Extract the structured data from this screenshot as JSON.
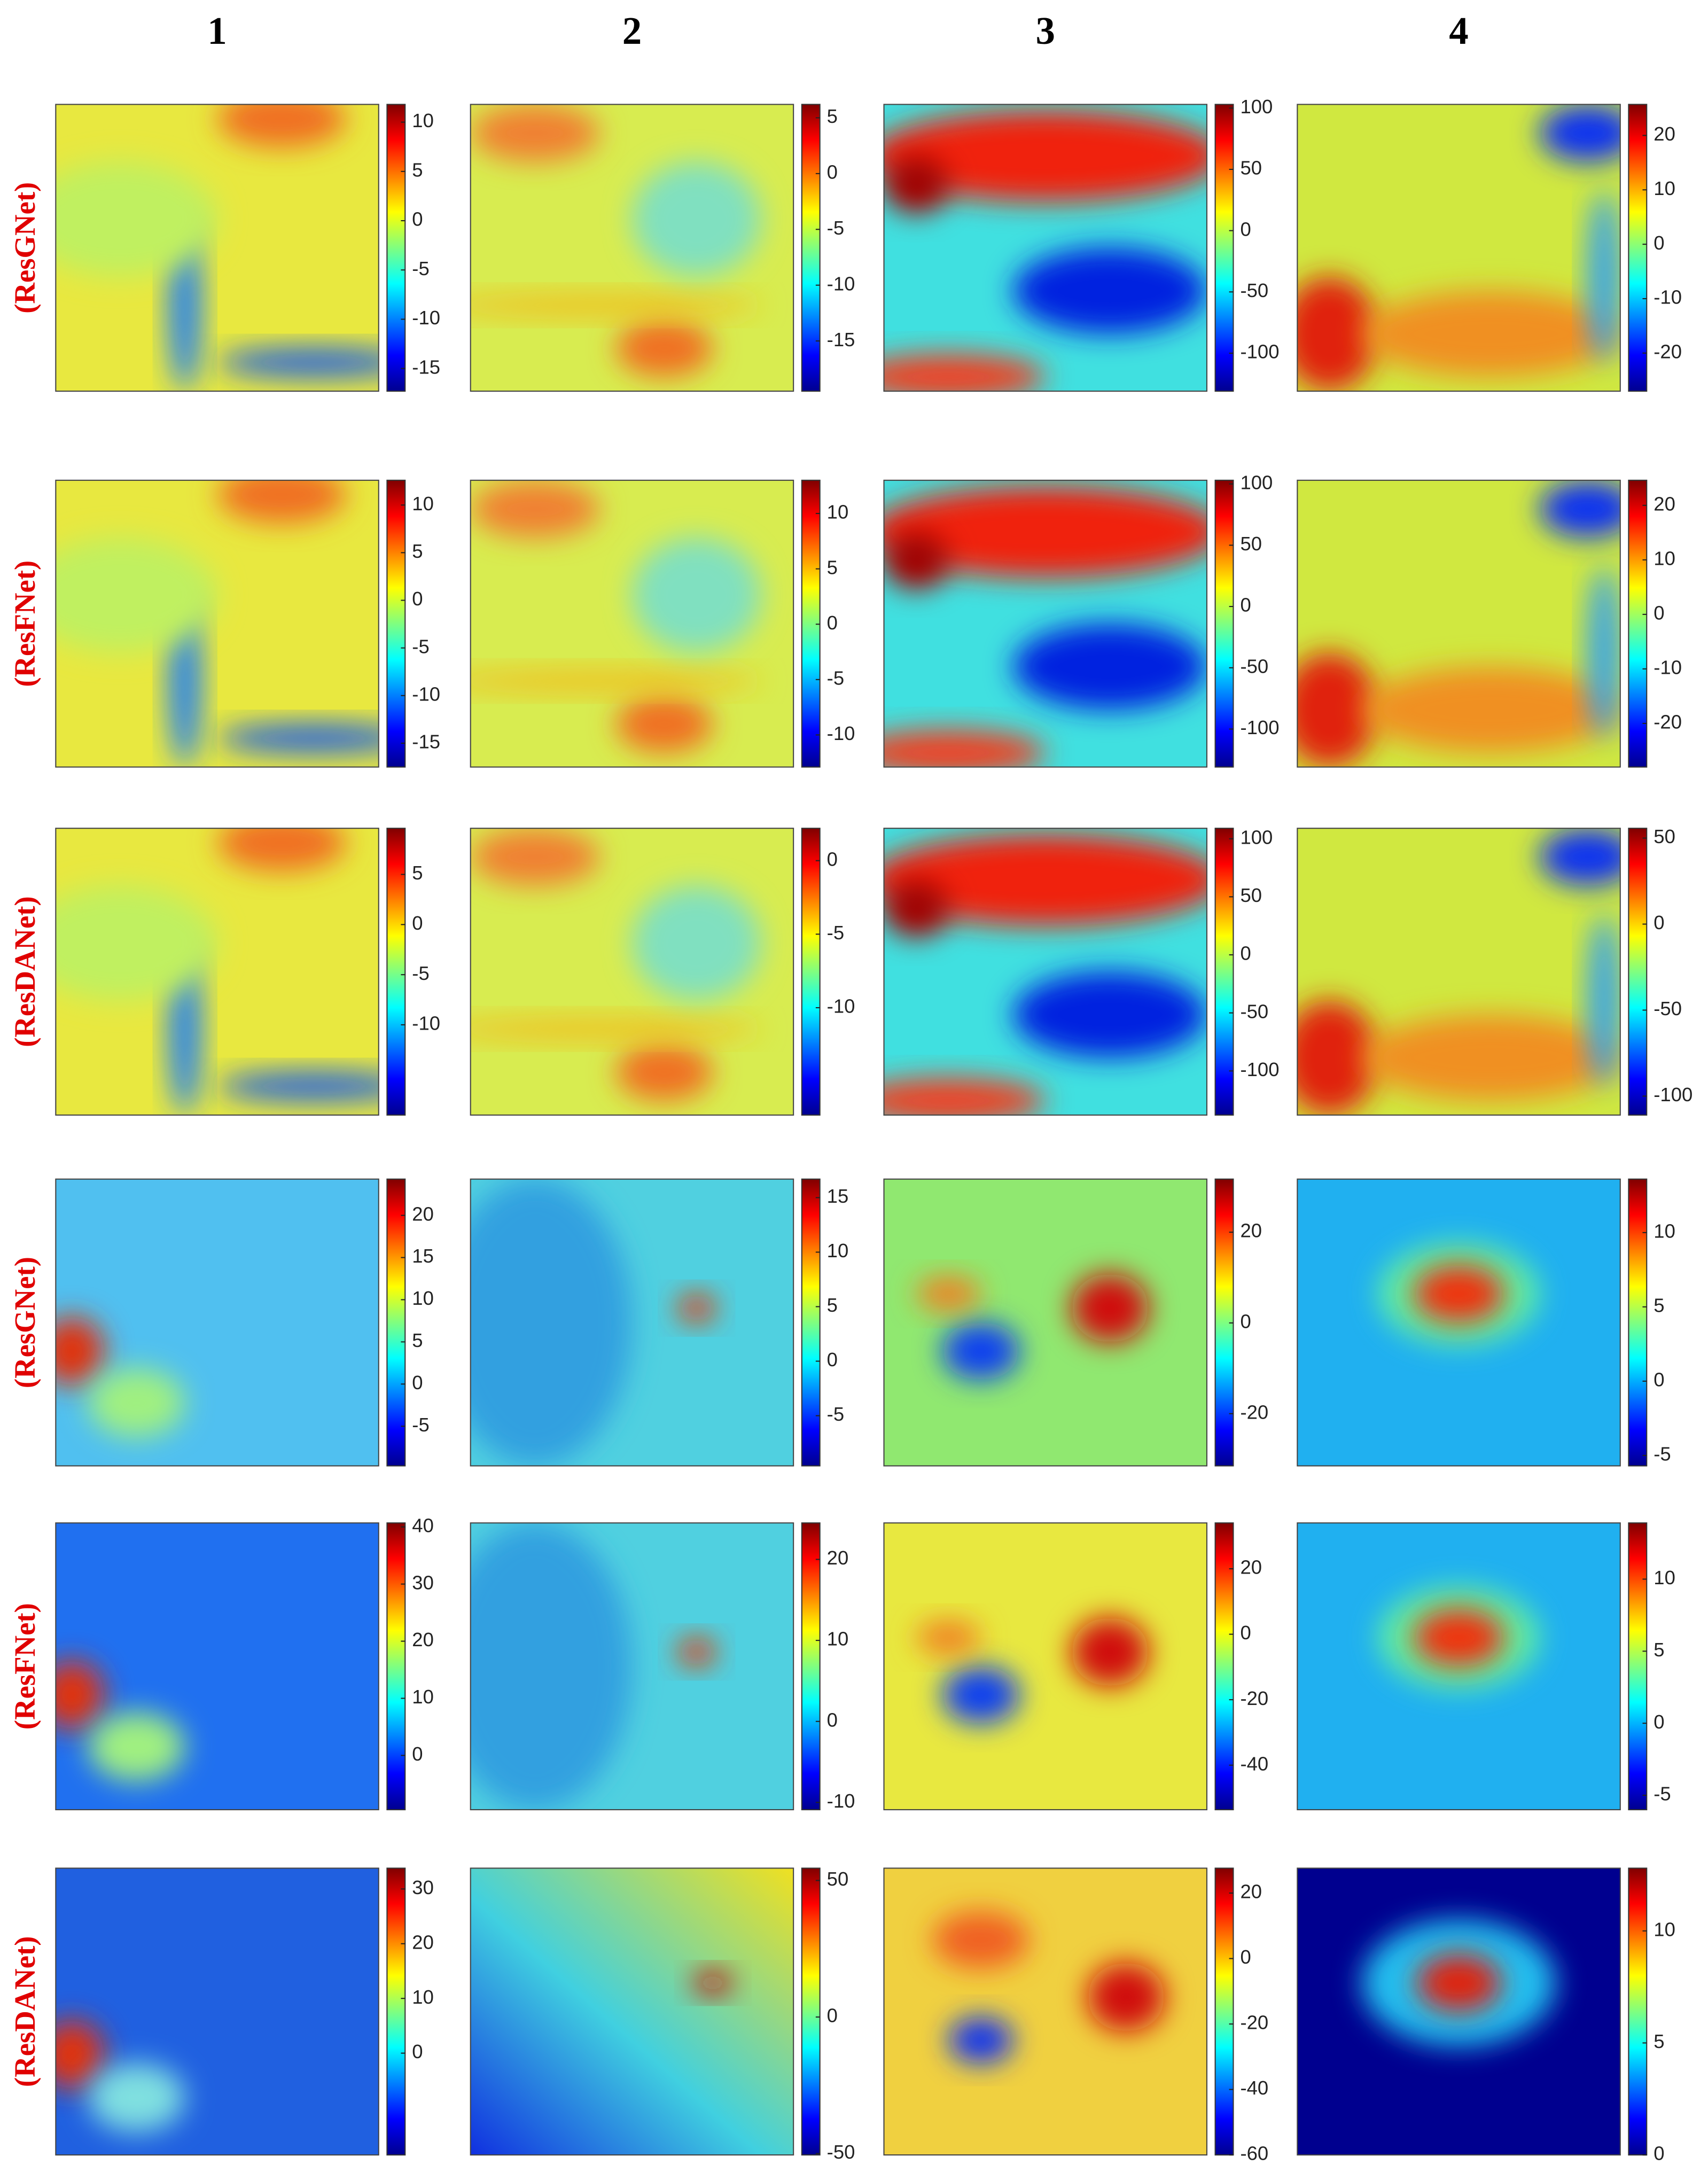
{
  "columns": [
    "1",
    "2",
    "3",
    "4"
  ],
  "rows": [
    {
      "label": "(ResGNet)",
      "panels": [
        {
          "clim": [
            -17.3,
            11.8
          ],
          "cticks": [
            10,
            5,
            0,
            -5,
            -10,
            -15
          ]
        },
        {
          "clim": [
            -19.5,
            6.2
          ],
          "cticks": [
            5,
            0,
            -5,
            -10,
            -15
          ]
        },
        {
          "clim": [
            -131,
            103
          ],
          "cticks": [
            100,
            50,
            0,
            -50,
            -100
          ]
        },
        {
          "clim": [
            -27,
            25.7
          ],
          "cticks": [
            20,
            10,
            0,
            -10,
            -20
          ]
        }
      ]
    },
    {
      "label": "(ResFNet)",
      "panels": [
        {
          "clim": [
            -17.5,
            12.6
          ],
          "cticks": [
            10,
            5,
            0,
            -5,
            -10,
            -15
          ]
        },
        {
          "clim": [
            -12.9,
            13
          ],
          "cticks": [
            10,
            5,
            0,
            -5,
            -10
          ]
        },
        {
          "clim": [
            -131,
            103
          ],
          "cticks": [
            100,
            50,
            0,
            -50,
            -100
          ]
        },
        {
          "clim": [
            -28,
            24.6
          ],
          "cticks": [
            20,
            10,
            0,
            -10,
            -20
          ]
        }
      ]
    },
    {
      "label": "(ResDANet)",
      "panels": [
        {
          "clim": [
            -19,
            9.6
          ],
          "cticks": [
            5,
            0,
            -5,
            -10
          ]
        },
        {
          "clim": [
            -17.3,
            2.2
          ],
          "cticks": [
            0,
            -5,
            -10
          ]
        },
        {
          "clim": [
            -138,
            109
          ],
          "cticks": [
            100,
            50,
            0,
            -50,
            -100
          ]
        },
        {
          "clim": [
            -111,
            55.7
          ],
          "cticks": [
            50,
            0,
            -50,
            -100
          ]
        }
      ]
    },
    {
      "label": "(ResGNet)",
      "panels": [
        {
          "clim": [
            -9.7,
            24.3
          ],
          "cticks": [
            20,
            15,
            10,
            5,
            0,
            -5
          ]
        },
        {
          "clim": [
            -9.6,
            16.7
          ],
          "cticks": [
            15,
            10,
            5,
            0,
            -5
          ]
        },
        {
          "clim": [
            -31.5,
            31.7
          ],
          "cticks": [
            20,
            0,
            -20
          ]
        },
        {
          "clim": [
            -5.7,
            13.6
          ],
          "cticks": [
            10,
            5,
            0,
            -5
          ]
        }
      ]
    },
    {
      "label": "(ResFNet)",
      "panels": [
        {
          "clim": [
            -9.5,
            40.7
          ],
          "cticks": [
            40,
            30,
            20,
            10,
            0
          ]
        },
        {
          "clim": [
            -10.9,
            24.5
          ],
          "cticks": [
            20,
            10,
            0,
            -10
          ]
        },
        {
          "clim": [
            -53.6,
            34
          ],
          "cticks": [
            20,
            0,
            -20,
            -40
          ]
        },
        {
          "clim": [
            -6,
            13.9
          ],
          "cticks": [
            10,
            5,
            0,
            -5
          ]
        }
      ]
    },
    {
      "label": "(ResDANet)",
      "panels": [
        {
          "clim": [
            -18.6,
            33.8
          ],
          "cticks": [
            30,
            20,
            10,
            0
          ]
        },
        {
          "clim": [
            -50.5,
            54.5
          ],
          "cticks": [
            50,
            0,
            -50
          ]
        },
        {
          "clim": [
            -60,
            27.6
          ],
          "cticks": [
            20,
            0,
            -20,
            -40,
            -60
          ]
        },
        {
          "clim": [
            0,
            12.8
          ],
          "cticks": [
            10,
            5,
            0
          ]
        }
      ]
    }
  ]
}
